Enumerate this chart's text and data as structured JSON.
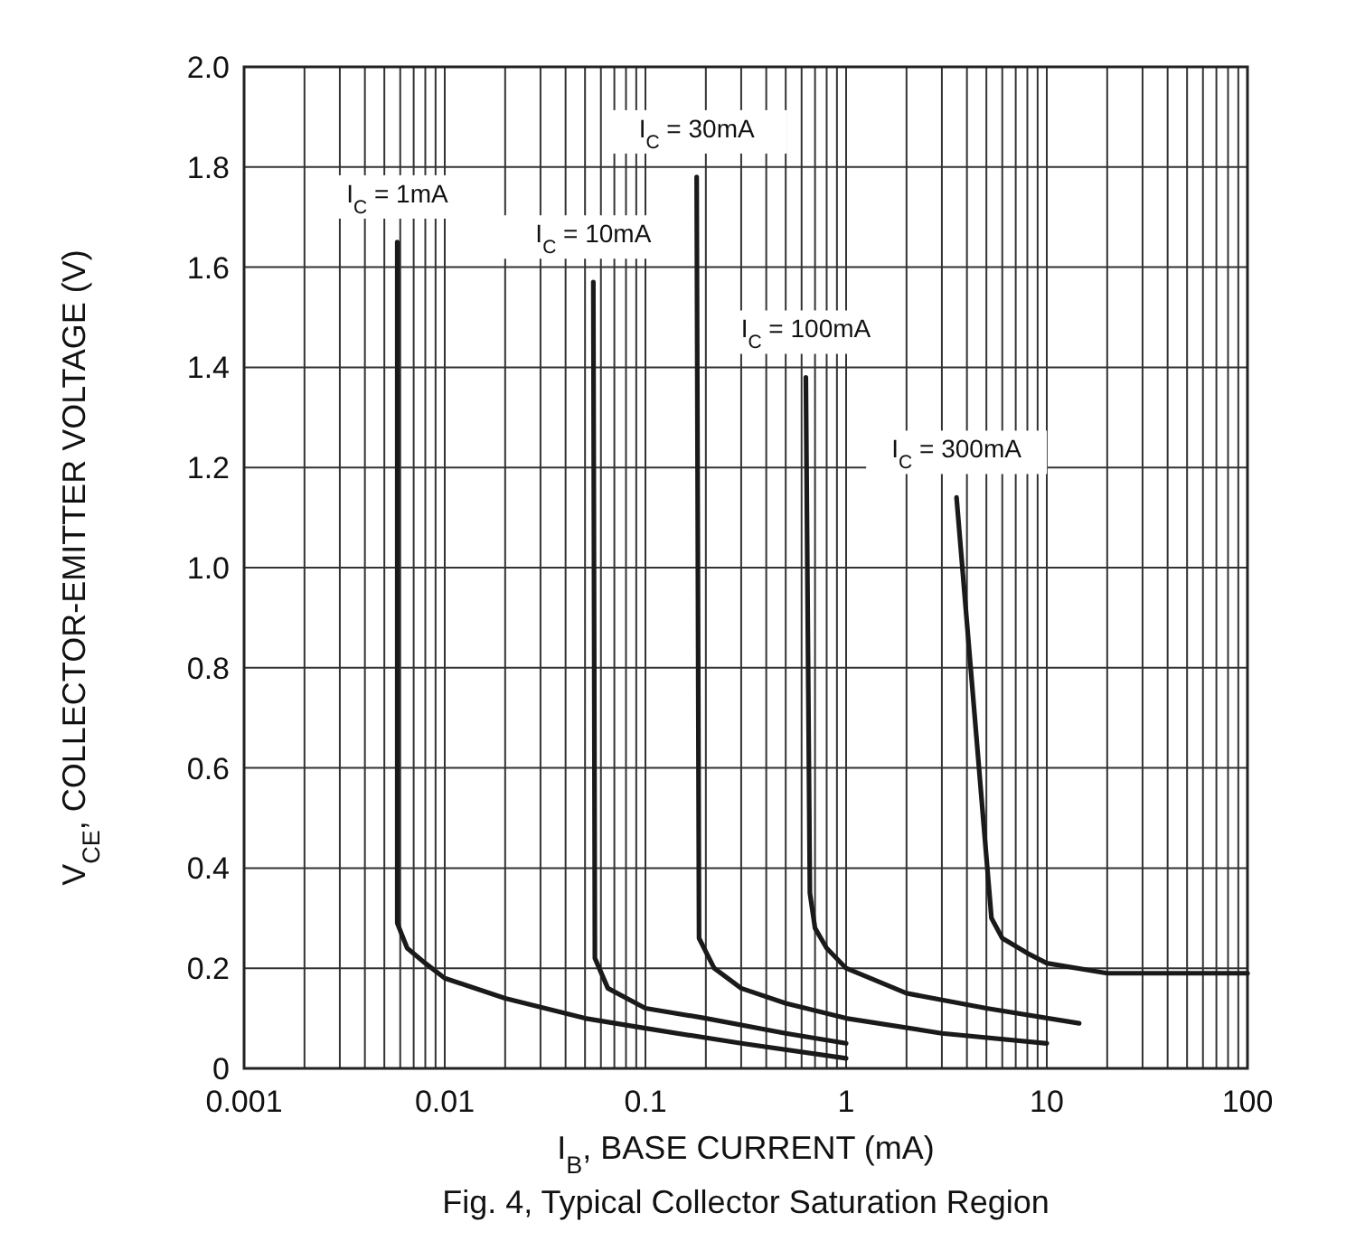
{
  "chart_data": {
    "type": "line",
    "title": "Fig. 4, Typical Collector Saturation Region",
    "xlabel": "I$_{B}$, BASE CURRENT (mA)",
    "ylabel": "V$_{CE}$, COLLECTOR-EMITTER VOLTAGE (V)",
    "log": "x",
    "grid": true,
    "marker": "none",
    "line_style": "solid",
    "xlim": [
      0.001,
      100
    ],
    "ylim": [
      0,
      2
    ],
    "xticks": [
      0.001,
      {
        "value": 0.002,
        "label": null
      },
      {
        "value": 0.003,
        "label": null
      },
      {
        "value": 0.004,
        "label": null
      },
      {
        "value": 0.005,
        "label": null
      },
      {
        "value": 0.006,
        "label": null
      },
      {
        "value": 0.007,
        "label": null
      },
      {
        "value": 0.008,
        "label": null
      },
      {
        "value": 0.009,
        "label": null
      },
      0.01,
      {
        "value": 0.02,
        "label": null
      },
      {
        "value": 0.03,
        "label": null
      },
      {
        "value": 0.04,
        "label": null
      },
      {
        "value": 0.05,
        "label": null
      },
      {
        "value": 0.06,
        "label": null
      },
      {
        "value": 0.07,
        "label": null
      },
      {
        "value": 0.08,
        "label": null
      },
      {
        "value": 0.09,
        "label": null
      },
      0.1,
      {
        "value": 0.2,
        "label": null
      },
      {
        "value": 0.3,
        "label": null
      },
      {
        "value": 0.4,
        "label": null
      },
      {
        "value": 0.5,
        "label": null
      },
      {
        "value": 0.6,
        "label": null
      },
      {
        "value": 0.7,
        "label": null
      },
      {
        "value": 0.8,
        "label": null
      },
      {
        "value": 0.9,
        "label": null
      },
      1,
      {
        "value": 2,
        "label": null
      },
      {
        "value": 3,
        "label": null
      },
      {
        "value": 4,
        "label": null
      },
      {
        "value": 5,
        "label": null
      },
      {
        "value": 6,
        "label": null
      },
      {
        "value": 7,
        "label": null
      },
      {
        "value": 8,
        "label": null
      },
      {
        "value": 9,
        "label": null
      },
      10,
      {
        "value": 20,
        "label": null
      },
      {
        "value": 30,
        "label": null
      },
      {
        "value": 40,
        "label": null
      },
      {
        "value": 50,
        "label": null
      },
      {
        "value": 60,
        "label": null
      },
      {
        "value": 70,
        "label": null
      },
      {
        "value": 80,
        "label": null
      },
      {
        "value": 90,
        "label": null
      },
      100
    ],
    "yticks": [
      0,
      0.2,
      0.4,
      0.6,
      0.8,
      {
        "value": 1,
        "label": "1.0"
      },
      1.2,
      1.4,
      1.6,
      1.8,
      {
        "value": 2,
        "label": "2.0"
      }
    ],
    "series": [
      {
        "name": "I$_{C}$ = 1mA",
        "color": "#1a1a1a",
        "x": [
          0.0058,
          0.0058,
          0.0065,
          0.008,
          0.01,
          0.02,
          0.05,
          0.1,
          0.3,
          1
        ],
        "values": [
          1.65,
          0.29,
          0.24,
          0.21,
          0.18,
          0.14,
          0.1,
          0.08,
          0.05,
          0.02
        ]
      },
      {
        "name": "I$_{C}$ = 10mA",
        "color": "#1a1a1a",
        "x": [
          0.055,
          0.056,
          0.065,
          0.1,
          0.2,
          0.5,
          1
        ],
        "values": [
          1.57,
          0.22,
          0.16,
          0.12,
          0.1,
          0.07,
          0.05
        ]
      },
      {
        "name": "I$_{C}$ = 30mA",
        "color": "#1a1a1a",
        "x": [
          0.18,
          0.185,
          0.22,
          0.3,
          0.5,
          1,
          3,
          10
        ],
        "values": [
          1.78,
          0.26,
          0.2,
          0.16,
          0.13,
          0.1,
          0.07,
          0.05
        ]
      },
      {
        "name": "I$_{C}$ = 100mA",
        "color": "#1a1a1a",
        "x": [
          0.63,
          0.66,
          0.7,
          0.8,
          1,
          2,
          5,
          14.5
        ],
        "values": [
          1.38,
          0.35,
          0.28,
          0.24,
          0.2,
          0.15,
          0.12,
          0.09
        ]
      },
      {
        "name": "I$_{C}$ = 300mA",
        "color": "#1a1a1a",
        "x": [
          3.55,
          5.3,
          6,
          8,
          10,
          20,
          40,
          100
        ],
        "values": [
          1.14,
          0.3,
          0.26,
          0.23,
          0.21,
          0.19,
          0.19,
          0.19
        ]
      }
    ]
  }
}
